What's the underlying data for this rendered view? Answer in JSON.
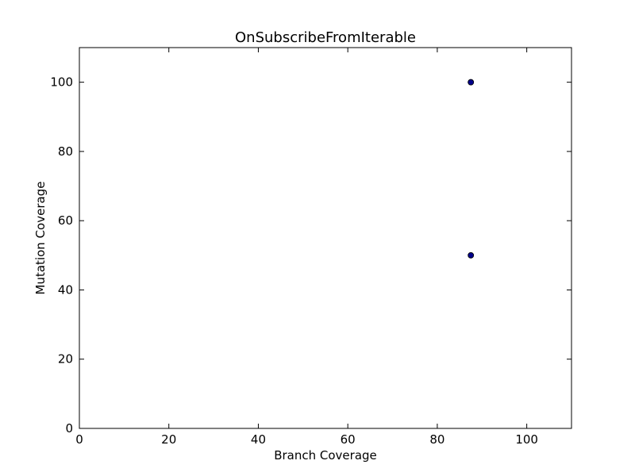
{
  "chart_data": {
    "type": "scatter",
    "title": "OnSubscribeFromIterable",
    "xlabel": "Branch Coverage",
    "ylabel": "Mutation Coverage",
    "xlim": [
      0,
      110
    ],
    "ylim": [
      0,
      110
    ],
    "xticks": [
      0,
      20,
      40,
      60,
      80,
      100
    ],
    "yticks": [
      0,
      20,
      40,
      60,
      80,
      100
    ],
    "grid": false,
    "series": [
      {
        "color": "#00008b",
        "points": [
          {
            "x": 87.5,
            "y": 100
          },
          {
            "x": 87.5,
            "y": 100
          },
          {
            "x": 87.5,
            "y": 50
          }
        ]
      }
    ]
  }
}
